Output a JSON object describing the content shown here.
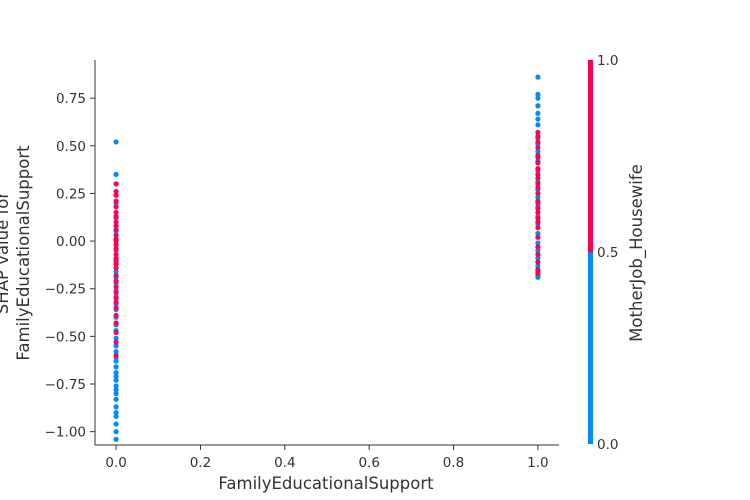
{
  "chart_data": {
    "type": "scatter",
    "xlabel": "FamilyEducationalSupport",
    "ylabel_lines": [
      "SHAP value for",
      "FamilyEducationalSupport"
    ],
    "xlim": [
      -0.05,
      1.05
    ],
    "ylim": [
      -1.07,
      0.95
    ],
    "xticks": [
      0.0,
      0.2,
      0.4,
      0.6,
      0.8,
      1.0
    ],
    "xtick_labels": [
      "0.0",
      "0.2",
      "0.4",
      "0.6",
      "0.8",
      "1.0"
    ],
    "yticks": [
      -1.0,
      -0.75,
      -0.5,
      -0.25,
      0.0,
      0.25,
      0.5,
      0.75
    ],
    "ytick_labels": [
      "−1.00",
      "−0.75",
      "−0.50",
      "−0.25",
      "0.00",
      "0.25",
      "0.50",
      "0.75"
    ],
    "grid": false,
    "colorbar": {
      "label": "MotherJob_Housewife",
      "range": [
        0.0,
        1.0
      ],
      "ticks": [
        0.0,
        0.5,
        1.0
      ],
      "tick_labels": [
        "0.0",
        "0.5",
        "1.0"
      ],
      "low_color": "#008bfb",
      "high_color": "#ff0052"
    },
    "series": [
      {
        "color_value": 0,
        "points": [
          [
            0,
            0.52
          ],
          [
            0,
            0.35
          ],
          [
            0,
            -0.16
          ],
          [
            0,
            -0.19
          ],
          [
            0,
            -0.22
          ],
          [
            0,
            -0.26
          ],
          [
            0,
            -0.29
          ],
          [
            0,
            -0.33
          ],
          [
            0,
            -0.36
          ],
          [
            0,
            -0.4
          ],
          [
            0,
            -0.44
          ],
          [
            0,
            -0.47
          ],
          [
            0,
            -0.51
          ],
          [
            0,
            -0.55
          ],
          [
            0,
            -0.58
          ],
          [
            0,
            -0.61
          ],
          [
            0,
            -0.63
          ],
          [
            0,
            -0.66
          ],
          [
            0,
            -0.69
          ],
          [
            0,
            -0.71
          ],
          [
            0,
            -0.73
          ],
          [
            0,
            -0.76
          ],
          [
            0,
            -0.78
          ],
          [
            0,
            -0.8
          ],
          [
            0,
            -0.83
          ],
          [
            0,
            -0.87
          ],
          [
            0,
            -0.9
          ],
          [
            0,
            -0.92
          ],
          [
            0,
            -0.96
          ],
          [
            0,
            -1.0
          ],
          [
            0,
            -1.04
          ],
          [
            0,
            0.05
          ],
          [
            0,
            -0.05
          ],
          [
            0,
            0.12
          ],
          [
            0,
            -0.1
          ],
          [
            0,
            0.2
          ],
          [
            1,
            0.86
          ],
          [
            1,
            0.77
          ],
          [
            1,
            0.75
          ],
          [
            1,
            0.71
          ],
          [
            1,
            0.67
          ],
          [
            1,
            0.64
          ],
          [
            1,
            0.61
          ],
          [
            1,
            0.54
          ],
          [
            1,
            0.51
          ],
          [
            1,
            0.47
          ],
          [
            1,
            0.42
          ],
          [
            1,
            0.37
          ],
          [
            1,
            0.31
          ],
          [
            1,
            0.27
          ],
          [
            1,
            0.23
          ],
          [
            1,
            0.18
          ],
          [
            1,
            0.13
          ],
          [
            1,
            0.09
          ],
          [
            1,
            0.04
          ],
          [
            1,
            -0.01
          ],
          [
            1,
            -0.05
          ],
          [
            1,
            -0.09
          ],
          [
            1,
            -0.13
          ],
          [
            1,
            -0.16
          ],
          [
            1,
            -0.18
          ],
          [
            1,
            -0.19
          ]
        ]
      },
      {
        "color_value": 1,
        "points": [
          [
            0,
            0.3
          ],
          [
            0,
            0.26
          ],
          [
            0,
            0.24
          ],
          [
            0,
            0.21
          ],
          [
            0,
            0.18
          ],
          [
            0,
            0.15
          ],
          [
            0,
            0.13
          ],
          [
            0,
            0.1
          ],
          [
            0,
            0.08
          ],
          [
            0,
            0.06
          ],
          [
            0,
            0.03
          ],
          [
            0,
            0.01
          ],
          [
            0,
            -0.02
          ],
          [
            0,
            -0.04
          ],
          [
            0,
            -0.07
          ],
          [
            0,
            -0.09
          ],
          [
            0,
            -0.12
          ],
          [
            0,
            -0.14
          ],
          [
            0,
            -0.18
          ],
          [
            0,
            -0.21
          ],
          [
            0,
            -0.24
          ],
          [
            0,
            -0.27
          ],
          [
            0,
            -0.3
          ],
          [
            0,
            -0.32
          ],
          [
            0,
            -0.35
          ],
          [
            0,
            -0.39
          ],
          [
            0,
            -0.43
          ],
          [
            0,
            -0.48
          ],
          [
            0,
            -0.53
          ],
          [
            0,
            -0.6
          ],
          [
            0,
            0.0
          ],
          [
            0,
            -0.11
          ],
          [
            1,
            0.57
          ],
          [
            1,
            0.55
          ],
          [
            1,
            0.52
          ],
          [
            1,
            0.49
          ],
          [
            1,
            0.45
          ],
          [
            1,
            0.41
          ],
          [
            1,
            0.38
          ],
          [
            1,
            0.35
          ],
          [
            1,
            0.33
          ],
          [
            1,
            0.3
          ],
          [
            1,
            0.28
          ],
          [
            1,
            0.25
          ],
          [
            1,
            0.21
          ],
          [
            1,
            0.17
          ],
          [
            1,
            0.15
          ],
          [
            1,
            0.12
          ],
          [
            1,
            0.1
          ],
          [
            1,
            0.07
          ],
          [
            1,
            0.02
          ],
          [
            1,
            -0.03
          ],
          [
            1,
            -0.07
          ],
          [
            1,
            -0.11
          ],
          [
            1,
            -0.15
          ],
          [
            1,
            -0.17
          ],
          [
            1,
            0.44
          ],
          [
            1,
            0.2
          ]
        ]
      }
    ]
  }
}
